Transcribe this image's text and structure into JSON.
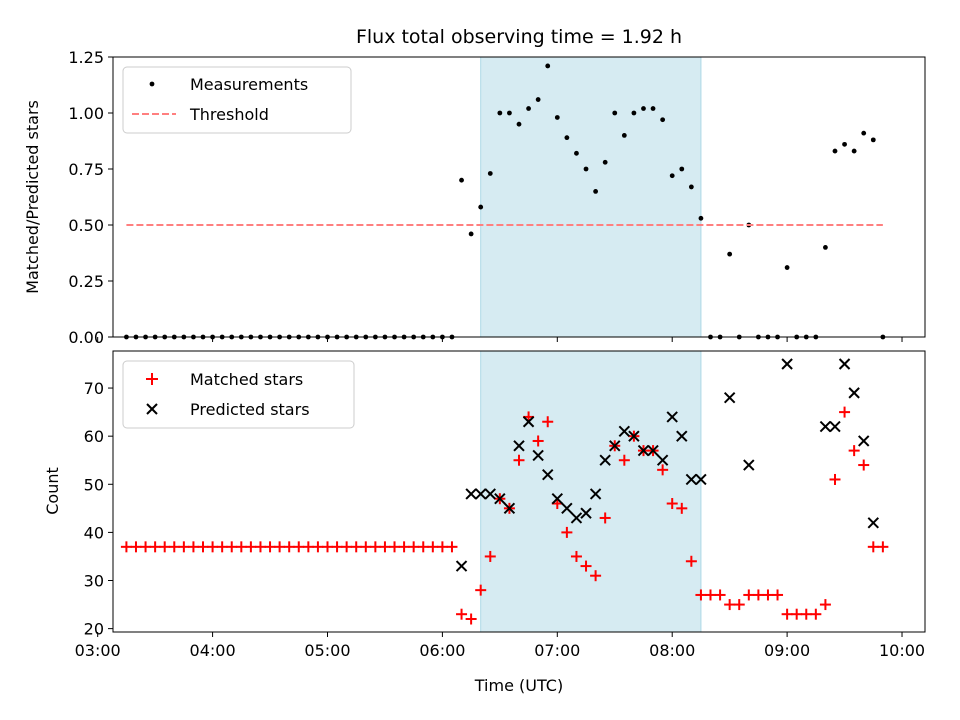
{
  "chart_data": [
    {
      "type": "scatter",
      "title": "Flux total observing time = 1.92 h",
      "ylabel": "Matched/Predicted stars",
      "xlabel": "",
      "xlim": [
        "03:08",
        "10:12"
      ],
      "ylim": [
        0,
        1.25
      ],
      "yticks": [
        "0.00",
        "0.25",
        "0.50",
        "0.75",
        "1.00",
        "1.25"
      ],
      "legend_position": "top-left",
      "highlight_span": [
        "06:20",
        "08:15"
      ],
      "series": [
        {
          "name": "Measurements",
          "marker": "dot",
          "color": "#000000",
          "points": [
            [
              "03:15",
              0
            ],
            [
              "03:20",
              0
            ],
            [
              "03:25",
              0
            ],
            [
              "03:30",
              0
            ],
            [
              "03:35",
              0
            ],
            [
              "03:40",
              0
            ],
            [
              "03:45",
              0
            ],
            [
              "03:50",
              0
            ],
            [
              "03:55",
              0
            ],
            [
              "04:00",
              0
            ],
            [
              "04:05",
              0
            ],
            [
              "04:10",
              0
            ],
            [
              "04:15",
              0
            ],
            [
              "04:20",
              0
            ],
            [
              "04:25",
              0
            ],
            [
              "04:30",
              0
            ],
            [
              "04:35",
              0
            ],
            [
              "04:40",
              0
            ],
            [
              "04:45",
              0
            ],
            [
              "04:50",
              0
            ],
            [
              "04:55",
              0
            ],
            [
              "05:00",
              0
            ],
            [
              "05:05",
              0
            ],
            [
              "05:10",
              0
            ],
            [
              "05:15",
              0
            ],
            [
              "05:20",
              0
            ],
            [
              "05:25",
              0
            ],
            [
              "05:30",
              0
            ],
            [
              "05:35",
              0
            ],
            [
              "05:40",
              0
            ],
            [
              "05:45",
              0
            ],
            [
              "05:50",
              0
            ],
            [
              "05:55",
              0
            ],
            [
              "06:00",
              0
            ],
            [
              "06:05",
              0
            ],
            [
              "06:10",
              0.7
            ],
            [
              "06:15",
              0.46
            ],
            [
              "06:20",
              0.58
            ],
            [
              "06:25",
              0.73
            ],
            [
              "06:30",
              1.0
            ],
            [
              "06:35",
              1.0
            ],
            [
              "06:40",
              0.95
            ],
            [
              "06:45",
              1.02
            ],
            [
              "06:50",
              1.06
            ],
            [
              "06:55",
              1.21
            ],
            [
              "07:00",
              0.98
            ],
            [
              "07:05",
              0.89
            ],
            [
              "07:10",
              0.82
            ],
            [
              "07:15",
              0.75
            ],
            [
              "07:20",
              0.65
            ],
            [
              "07:25",
              0.78
            ],
            [
              "07:30",
              1.0
            ],
            [
              "07:35",
              0.9
            ],
            [
              "07:40",
              1.0
            ],
            [
              "07:45",
              1.02
            ],
            [
              "07:50",
              1.02
            ],
            [
              "07:55",
              0.97
            ],
            [
              "08:00",
              0.72
            ],
            [
              "08:05",
              0.75
            ],
            [
              "08:10",
              0.67
            ],
            [
              "08:15",
              0.53
            ],
            [
              "08:20",
              0
            ],
            [
              "08:25",
              0
            ],
            [
              "08:30",
              0.37
            ],
            [
              "08:35",
              0
            ],
            [
              "08:40",
              0.5
            ],
            [
              "08:45",
              0
            ],
            [
              "08:50",
              0
            ],
            [
              "08:55",
              0
            ],
            [
              "09:00",
              0.31
            ],
            [
              "09:05",
              0
            ],
            [
              "09:10",
              0
            ],
            [
              "09:15",
              0
            ],
            [
              "09:20",
              0.4
            ],
            [
              "09:25",
              0.83
            ],
            [
              "09:30",
              0.86
            ],
            [
              "09:35",
              0.83
            ],
            [
              "09:40",
              0.91
            ],
            [
              "09:45",
              0.88
            ],
            [
              "09:50",
              0
            ]
          ]
        },
        {
          "name": "Threshold",
          "marker": "dashed-line",
          "color": "#ff7f7f",
          "points": [
            [
              "03:15",
              0.5
            ],
            [
              "09:50",
              0.5
            ]
          ]
        }
      ]
    },
    {
      "type": "scatter",
      "title": "",
      "ylabel": "Count",
      "xlabel": "Time (UTC)",
      "xlim": [
        "03:08",
        "10:12"
      ],
      "ylim": [
        19.3,
        77.7
      ],
      "yticks": [
        "20",
        "30",
        "40",
        "50",
        "60",
        "70"
      ],
      "xticks": [
        "03:00",
        "04:00",
        "05:00",
        "06:00",
        "07:00",
        "08:00",
        "09:00",
        "10:00"
      ],
      "legend_position": "top-left",
      "highlight_span": [
        "06:20",
        "08:15"
      ],
      "series": [
        {
          "name": "Matched stars",
          "marker": "plus",
          "color": "#ff0000",
          "points": [
            [
              "03:15",
              37
            ],
            [
              "03:20",
              37
            ],
            [
              "03:25",
              37
            ],
            [
              "03:30",
              37
            ],
            [
              "03:35",
              37
            ],
            [
              "03:40",
              37
            ],
            [
              "03:45",
              37
            ],
            [
              "03:50",
              37
            ],
            [
              "03:55",
              37
            ],
            [
              "04:00",
              37
            ],
            [
              "04:05",
              37
            ],
            [
              "04:10",
              37
            ],
            [
              "04:15",
              37
            ],
            [
              "04:20",
              37
            ],
            [
              "04:25",
              37
            ],
            [
              "04:30",
              37
            ],
            [
              "04:35",
              37
            ],
            [
              "04:40",
              37
            ],
            [
              "04:45",
              37
            ],
            [
              "04:50",
              37
            ],
            [
              "04:55",
              37
            ],
            [
              "05:00",
              37
            ],
            [
              "05:05",
              37
            ],
            [
              "05:10",
              37
            ],
            [
              "05:15",
              37
            ],
            [
              "05:20",
              37
            ],
            [
              "05:25",
              37
            ],
            [
              "05:30",
              37
            ],
            [
              "05:35",
              37
            ],
            [
              "05:40",
              37
            ],
            [
              "05:45",
              37
            ],
            [
              "05:50",
              37
            ],
            [
              "05:55",
              37
            ],
            [
              "06:00",
              37
            ],
            [
              "06:05",
              37
            ],
            [
              "06:10",
              23
            ],
            [
              "06:15",
              22
            ],
            [
              "06:20",
              28
            ],
            [
              "06:25",
              35
            ],
            [
              "06:30",
              47
            ],
            [
              "06:35",
              45
            ],
            [
              "06:40",
              55
            ],
            [
              "06:45",
              64
            ],
            [
              "06:50",
              59
            ],
            [
              "06:55",
              63
            ],
            [
              "07:00",
              46
            ],
            [
              "07:05",
              40
            ],
            [
              "07:10",
              35
            ],
            [
              "07:15",
              33
            ],
            [
              "07:20",
              31
            ],
            [
              "07:25",
              43
            ],
            [
              "07:30",
              58
            ],
            [
              "07:35",
              55
            ],
            [
              "07:40",
              60
            ],
            [
              "07:45",
              57
            ],
            [
              "07:50",
              57
            ],
            [
              "07:55",
              53
            ],
            [
              "08:00",
              46
            ],
            [
              "08:05",
              45
            ],
            [
              "08:10",
              34
            ],
            [
              "08:15",
              27
            ],
            [
              "08:20",
              27
            ],
            [
              "08:25",
              27
            ],
            [
              "08:30",
              25
            ],
            [
              "08:35",
              25
            ],
            [
              "08:40",
              27
            ],
            [
              "08:45",
              27
            ],
            [
              "08:50",
              27
            ],
            [
              "08:55",
              27
            ],
            [
              "09:00",
              23
            ],
            [
              "09:05",
              23
            ],
            [
              "09:10",
              23
            ],
            [
              "09:15",
              23
            ],
            [
              "09:20",
              25
            ],
            [
              "09:25",
              51
            ],
            [
              "09:30",
              65
            ],
            [
              "09:35",
              57
            ],
            [
              "09:40",
              54
            ],
            [
              "09:45",
              37
            ],
            [
              "09:50",
              37
            ]
          ]
        },
        {
          "name": "Predicted stars",
          "marker": "x",
          "color": "#000000",
          "points": [
            [
              "06:10",
              33
            ],
            [
              "06:15",
              48
            ],
            [
              "06:20",
              48
            ],
            [
              "06:25",
              48
            ],
            [
              "06:30",
              47
            ],
            [
              "06:35",
              45
            ],
            [
              "06:40",
              58
            ],
            [
              "06:45",
              63
            ],
            [
              "06:50",
              56
            ],
            [
              "06:55",
              52
            ],
            [
              "07:00",
              47
            ],
            [
              "07:05",
              45
            ],
            [
              "07:10",
              43
            ],
            [
              "07:15",
              44
            ],
            [
              "07:20",
              48
            ],
            [
              "07:25",
              55
            ],
            [
              "07:30",
              58
            ],
            [
              "07:35",
              61
            ],
            [
              "07:40",
              60
            ],
            [
              "07:45",
              57
            ],
            [
              "07:50",
              57
            ],
            [
              "07:55",
              55
            ],
            [
              "08:00",
              64
            ],
            [
              "08:05",
              60
            ],
            [
              "08:10",
              51
            ],
            [
              "08:15",
              51
            ],
            [
              "08:30",
              68
            ],
            [
              "08:40",
              54
            ],
            [
              "09:00",
              75
            ],
            [
              "09:20",
              62
            ],
            [
              "09:25",
              62
            ],
            [
              "09:30",
              75
            ],
            [
              "09:35",
              69
            ],
            [
              "09:40",
              59
            ],
            [
              "09:45",
              42
            ]
          ]
        }
      ]
    }
  ]
}
